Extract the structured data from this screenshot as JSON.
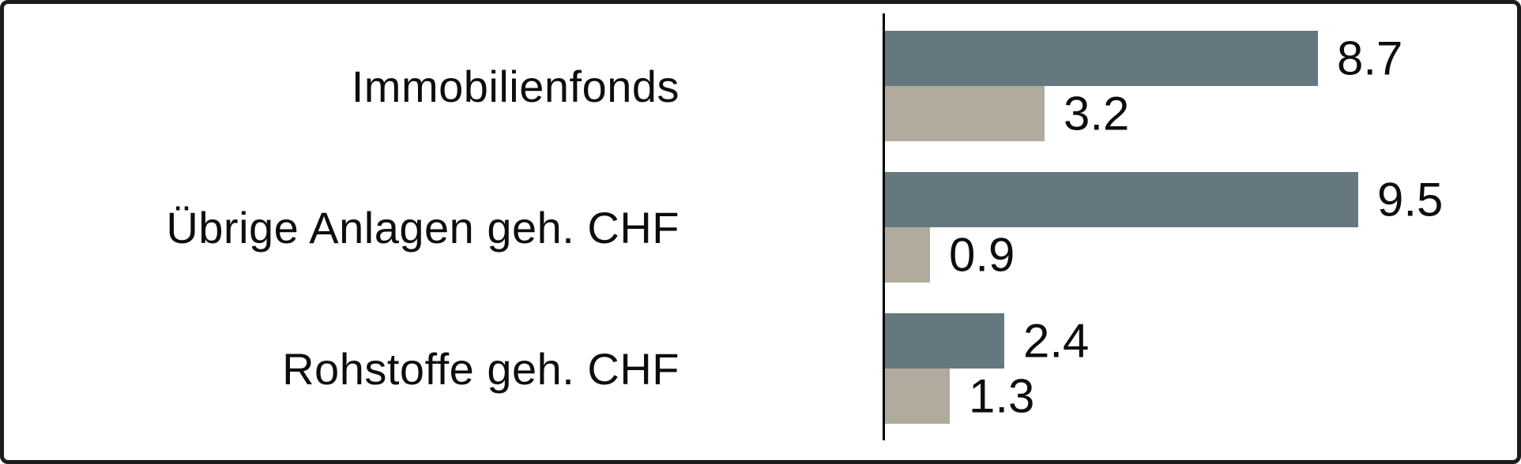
{
  "chart_data": {
    "type": "bar",
    "orientation": "horizontal",
    "title": "",
    "xlabel": "",
    "ylabel": "",
    "grid": false,
    "legend": "none",
    "value_labels": true,
    "xlim": [
      0,
      10
    ],
    "categories": [
      "Immobilienfonds",
      "Übrige Anlagen geh. CHF",
      "Rohstoffe geh. CHF"
    ],
    "series": [
      {
        "name": "series-1",
        "color": "#65787F",
        "values": [
          8.7,
          9.5,
          2.4
        ]
      },
      {
        "name": "series-2",
        "color": "#B0AB9C",
        "values": [
          3.2,
          0.9,
          1.3
        ]
      }
    ]
  },
  "colors": {
    "background": "#FFFFFF",
    "frame_border": "#1C1C1C",
    "axis_line": "#000000",
    "text": "#0D0D0D"
  }
}
